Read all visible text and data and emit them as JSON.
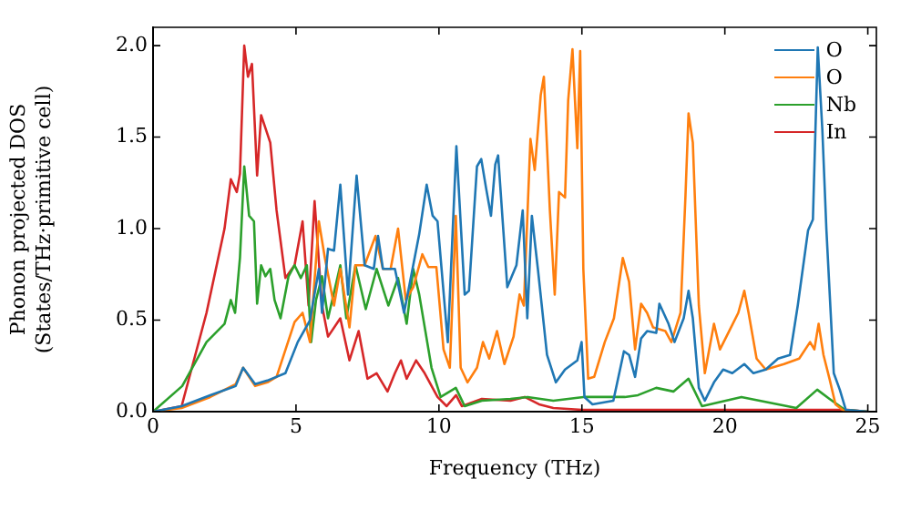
{
  "chart_data": {
    "type": "line",
    "xlabel": "Frequency (THz)",
    "ylabel": "Phonon projected DOS\n(States/THz·primitive cell)",
    "xlim": [
      0,
      25.3
    ],
    "ylim": [
      0,
      2.1
    ],
    "xticks": [
      0,
      5,
      10,
      15,
      20,
      25
    ],
    "yticks": [
      {
        "value": 0,
        "label": "0.0"
      },
      {
        "value": 0.5,
        "label": "0.5"
      },
      {
        "value": 1,
        "label": "1.0"
      },
      {
        "value": 1.5,
        "label": "1.5"
      },
      {
        "value": 2,
        "label": "2.0"
      }
    ],
    "grid": false,
    "legend": "top right",
    "marker": "none",
    "line_style": "solid",
    "series": [
      {
        "name": "O",
        "color": "#1f77b4",
        "x": [
          0,
          1,
          2,
          2.89,
          3.15,
          3.57,
          4.0,
          4.63,
          5.06,
          5.49,
          5.8,
          5.91,
          6.12,
          6.33,
          6.55,
          6.82,
          7.12,
          7.4,
          7.72,
          7.87,
          8.04,
          8.46,
          8.78,
          9.1,
          9.31,
          9.57,
          9.78,
          9.95,
          10.31,
          10.61,
          10.9,
          11.05,
          11.33,
          11.48,
          11.65,
          11.82,
          11.97,
          12.07,
          12.39,
          12.71,
          12.93,
          13.09,
          13.25,
          13.46,
          13.78,
          14.09,
          14.41,
          14.84,
          14.99,
          15.09,
          15.37,
          16.1,
          16.47,
          16.65,
          16.86,
          17.07,
          17.28,
          17.6,
          17.71,
          18.03,
          18.24,
          18.56,
          18.73,
          18.88,
          19.09,
          19.3,
          19.62,
          19.94,
          20.26,
          20.68,
          21.0,
          21.43,
          21.86,
          22.28,
          22.55,
          22.91,
          23.08,
          23.25,
          23.41,
          23.55,
          23.81,
          24.02,
          24.23,
          25
        ],
        "values": [
          0,
          0.03,
          0.09,
          0.14,
          0.24,
          0.15,
          0.17,
          0.21,
          0.38,
          0.5,
          0.78,
          0.54,
          0.89,
          0.88,
          1.24,
          0.64,
          1.29,
          0.8,
          0.78,
          0.96,
          0.78,
          0.78,
          0.54,
          0.8,
          0.97,
          1.24,
          1.07,
          1.04,
          0.38,
          1.45,
          0.64,
          0.66,
          1.34,
          1.38,
          1.22,
          1.07,
          1.35,
          1.4,
          0.68,
          0.8,
          1.1,
          0.51,
          1.07,
          0.78,
          0.31,
          0.16,
          0.23,
          0.28,
          0.38,
          0.08,
          0.04,
          0.06,
          0.33,
          0.31,
          0.19,
          0.4,
          0.44,
          0.43,
          0.59,
          0.48,
          0.38,
          0.51,
          0.66,
          0.51,
          0.13,
          0.06,
          0.16,
          0.23,
          0.21,
          0.26,
          0.21,
          0.23,
          0.29,
          0.31,
          0.58,
          0.99,
          1.05,
          1.99,
          1.54,
          1.0,
          0.21,
          0.12,
          0.01,
          0
        ]
      },
      {
        "name": "O",
        "color": "#ff7f0e",
        "x": [
          0,
          1,
          2,
          2.89,
          3.15,
          3.57,
          4.0,
          4.32,
          4.95,
          5.23,
          5.49,
          5.8,
          6.01,
          6.33,
          6.55,
          6.87,
          7.08,
          7.4,
          7.78,
          8.04,
          8.31,
          8.57,
          8.84,
          9.1,
          9.42,
          9.63,
          9.91,
          10.16,
          10.38,
          10.59,
          10.76,
          11.0,
          11.33,
          11.54,
          11.76,
          12.03,
          12.29,
          12.61,
          12.82,
          12.97,
          13.2,
          13.35,
          13.56,
          13.67,
          13.88,
          14.05,
          14.2,
          14.41,
          14.52,
          14.67,
          14.84,
          14.94,
          15.05,
          15.22,
          15.43,
          15.8,
          16.12,
          16.43,
          16.65,
          16.86,
          17.07,
          17.28,
          17.49,
          17.92,
          18.13,
          18.45,
          18.62,
          18.73,
          18.88,
          19.09,
          19.3,
          19.62,
          19.83,
          20.15,
          20.47,
          20.68,
          20.83,
          21.11,
          21.43,
          22.07,
          22.6,
          22.98,
          23.13,
          23.28,
          23.45,
          23.66,
          23.87,
          24.2,
          25
        ],
        "values": [
          0,
          0.02,
          0.08,
          0.15,
          0.24,
          0.14,
          0.16,
          0.19,
          0.49,
          0.54,
          0.38,
          1.04,
          0.84,
          0.58,
          0.78,
          0.46,
          0.8,
          0.8,
          0.96,
          0.78,
          0.78,
          1.0,
          0.61,
          0.68,
          0.86,
          0.79,
          0.79,
          0.34,
          0.24,
          1.07,
          0.24,
          0.16,
          0.24,
          0.38,
          0.29,
          0.44,
          0.26,
          0.41,
          0.64,
          0.58,
          1.49,
          1.32,
          1.73,
          1.83,
          1.1,
          0.64,
          1.2,
          1.17,
          1.7,
          1.98,
          1.44,
          1.97,
          0.78,
          0.18,
          0.19,
          0.38,
          0.51,
          0.84,
          0.71,
          0.34,
          0.59,
          0.54,
          0.46,
          0.44,
          0.38,
          0.54,
          1.17,
          1.63,
          1.47,
          0.58,
          0.21,
          0.48,
          0.34,
          0.44,
          0.54,
          0.66,
          0.54,
          0.29,
          0.23,
          0.26,
          0.29,
          0.38,
          0.34,
          0.48,
          0.31,
          0.18,
          0.04,
          0,
          0
        ]
      },
      {
        "name": "Nb",
        "color": "#2ca02c",
        "x": [
          0,
          1.02,
          1.87,
          2.5,
          2.72,
          2.87,
          3.04,
          3.19,
          3.36,
          3.53,
          3.64,
          3.78,
          3.93,
          4.1,
          4.25,
          4.46,
          4.74,
          4.95,
          5.17,
          5.38,
          5.53,
          5.7,
          5.91,
          6.12,
          6.55,
          6.76,
          7.08,
          7.44,
          7.82,
          8.23,
          8.57,
          8.87,
          9.1,
          9.31,
          9.74,
          10.06,
          10.59,
          10.9,
          11.5,
          12.5,
          13.1,
          14.0,
          15.05,
          16.5,
          16.96,
          17.6,
          18.2,
          18.73,
          19.2,
          20.58,
          22.5,
          23.23,
          23.66,
          24.2,
          25
        ],
        "values": [
          0,
          0.14,
          0.38,
          0.48,
          0.61,
          0.54,
          0.84,
          1.34,
          1.07,
          1.04,
          0.59,
          0.8,
          0.74,
          0.78,
          0.61,
          0.51,
          0.74,
          0.8,
          0.73,
          0.8,
          0.38,
          0.61,
          0.74,
          0.51,
          0.8,
          0.51,
          0.8,
          0.56,
          0.78,
          0.58,
          0.73,
          0.48,
          0.78,
          0.64,
          0.24,
          0.08,
          0.13,
          0.03,
          0.06,
          0.07,
          0.08,
          0.06,
          0.08,
          0.08,
          0.09,
          0.13,
          0.11,
          0.18,
          0.03,
          0.08,
          0.02,
          0.12,
          0.07,
          0.01,
          0
        ]
      },
      {
        "name": "In",
        "color": "#d62728",
        "x": [
          0,
          1,
          1.87,
          2.5,
          2.72,
          2.93,
          3.04,
          3.19,
          3.32,
          3.46,
          3.64,
          3.78,
          4.1,
          4.32,
          4.63,
          4.95,
          5.23,
          5.44,
          5.65,
          5.91,
          6.12,
          6.55,
          6.87,
          7.19,
          7.5,
          7.82,
          8.2,
          8.46,
          8.67,
          8.87,
          9.2,
          9.5,
          9.95,
          10.27,
          10.6,
          10.8,
          11.5,
          12.5,
          13.0,
          13.5,
          14.0,
          15.0,
          20.0,
          24.3,
          25
        ],
        "values": [
          0,
          0.03,
          0.54,
          1.0,
          1.27,
          1.2,
          1.3,
          2.0,
          1.83,
          1.9,
          1.29,
          1.62,
          1.47,
          1.1,
          0.73,
          0.8,
          1.04,
          0.58,
          1.15,
          0.58,
          0.41,
          0.51,
          0.28,
          0.44,
          0.18,
          0.21,
          0.11,
          0.21,
          0.28,
          0.18,
          0.28,
          0.21,
          0.08,
          0.03,
          0.09,
          0.03,
          0.07,
          0.06,
          0.08,
          0.04,
          0.02,
          0.01,
          0.01,
          0.01,
          0
        ]
      }
    ]
  }
}
